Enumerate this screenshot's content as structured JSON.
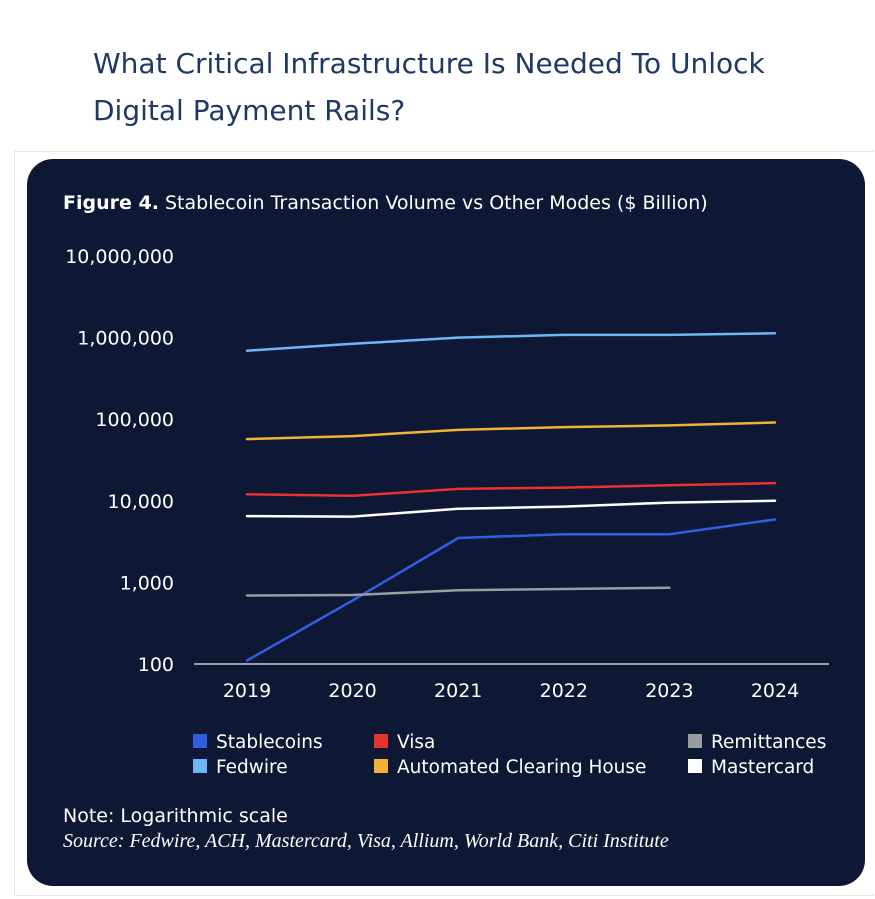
{
  "heading": "What Critical Infrastructure Is Needed To Unlock Digital Payment Rails?",
  "figure": {
    "label": "Figure 4.",
    "title": "Stablecoin Transaction Volume vs Other Modes ($ Billion)",
    "note": "Note: Logarithmic scale",
    "source": "Source: Fedwire, ACH, Mastercard, Visa, Allium, World Bank, Citi Institute"
  },
  "colors": {
    "card_background": "#0e1834",
    "heading": "#1f3864",
    "axis": "#c8ccd6"
  },
  "chart_data": {
    "type": "line",
    "title": "Figure 4. Stablecoin Transaction Volume vs Other Modes ($ Billion)",
    "xlabel": "",
    "ylabel": "",
    "yscale": "log",
    "ylim": [
      100,
      10000000
    ],
    "yticks": [
      100,
      1000,
      10000,
      100000,
      1000000,
      10000000
    ],
    "ytick_labels": [
      "100",
      "1,000",
      "10,000",
      "100,000",
      "1,000,000",
      "10,000,000"
    ],
    "grid": false,
    "legend_position": "bottom",
    "categories": [
      "2019",
      "2020",
      "2021",
      "2022",
      "2023",
      "2024"
    ],
    "series": [
      {
        "name": "Fedwire",
        "color": "#6cb7f5",
        "values": [
          690000,
          840000,
          1000000,
          1080000,
          1080000,
          1130000
        ]
      },
      {
        "name": "Automated Clearing House",
        "color": "#f2b233",
        "values": [
          57000,
          62000,
          74000,
          80000,
          84000,
          91000
        ]
      },
      {
        "name": "Visa",
        "color": "#e8322d",
        "values": [
          12000,
          11500,
          14000,
          14500,
          15500,
          16500
        ]
      },
      {
        "name": "Mastercard",
        "color": "#ffffff",
        "values": [
          6500,
          6400,
          8000,
          8500,
          9500,
          10000
        ]
      },
      {
        "name": "Stablecoins",
        "color": "#2f5fe0",
        "values": [
          110,
          600,
          3500,
          3900,
          3900,
          5900
        ]
      },
      {
        "name": "Remittances",
        "color": "#9a9ca3",
        "values": [
          690,
          700,
          800,
          830,
          860,
          null
        ]
      }
    ],
    "legend_order": [
      "Stablecoins",
      "Visa",
      "Remittances",
      "Fedwire",
      "Automated Clearing House",
      "Mastercard"
    ]
  }
}
